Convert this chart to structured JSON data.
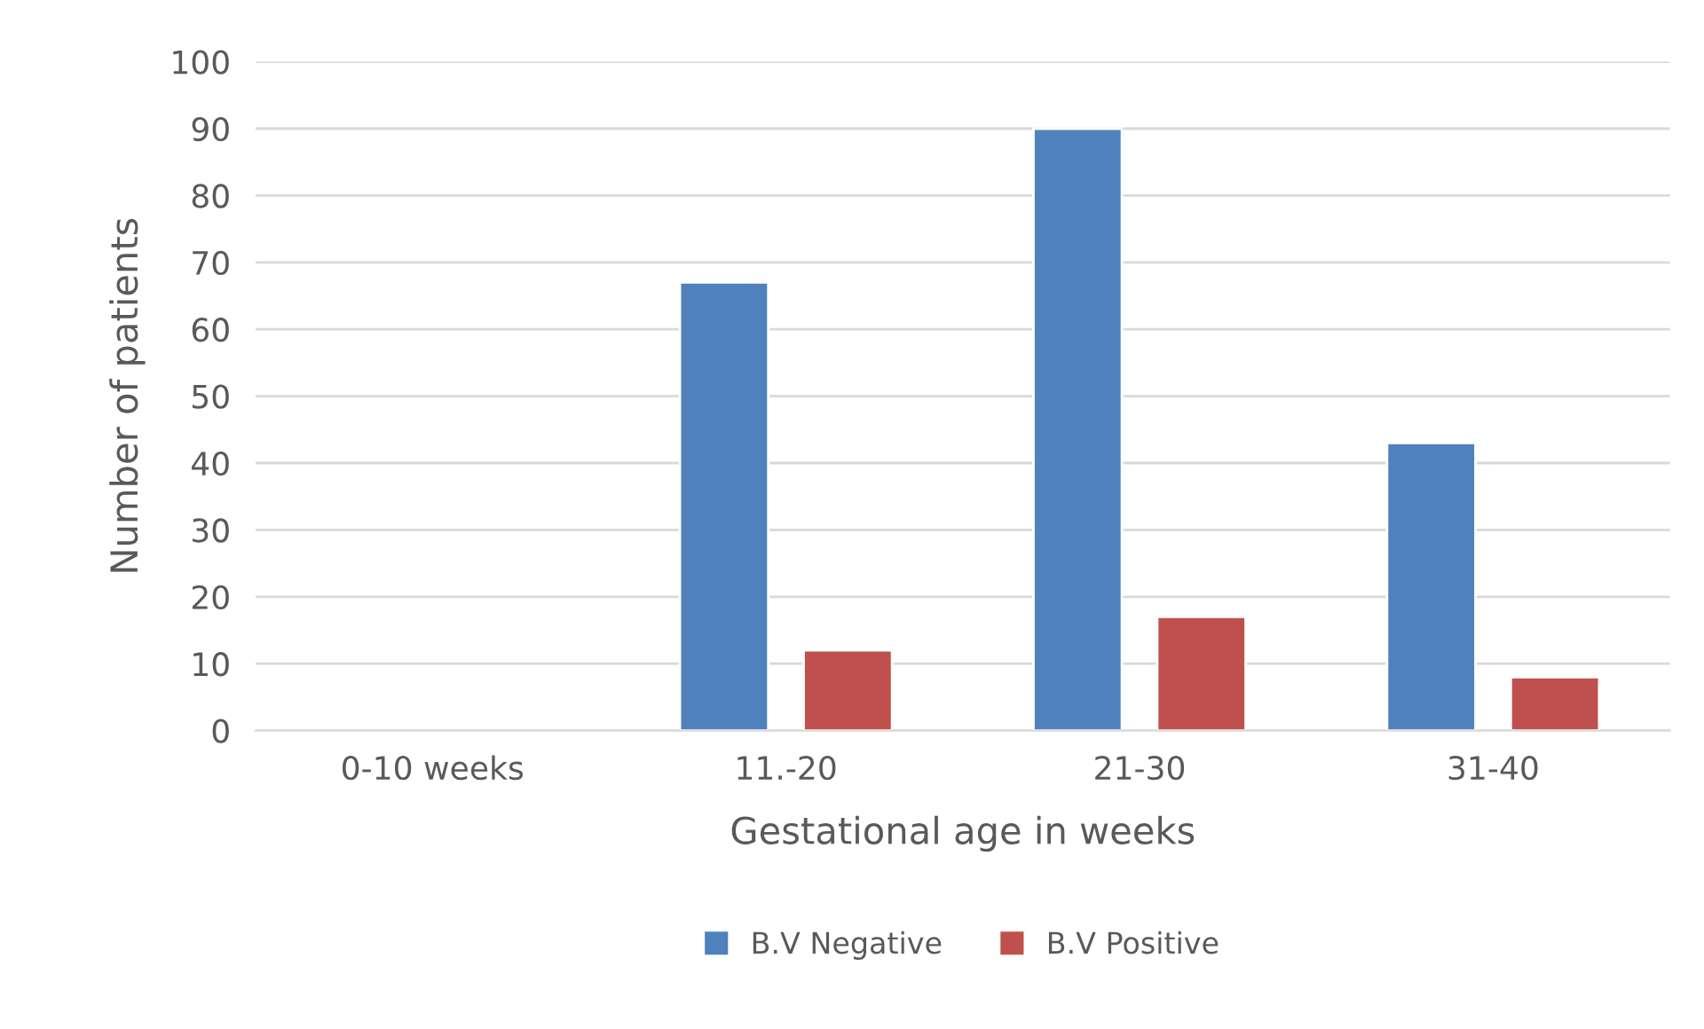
{
  "chart_data": {
    "type": "bar",
    "xlabel": "Gestational age in weeks",
    "ylabel": "Number of patients",
    "categories": [
      "0-10 weeks",
      "11.-20",
      "21-30",
      "31-40"
    ],
    "series": [
      {
        "name": "B.V Negative",
        "color": "#4f81bd",
        "values": [
          null,
          67,
          90,
          43
        ]
      },
      {
        "name": "B.V Positive",
        "color": "#c0504d",
        "values": [
          null,
          12,
          17,
          8
        ]
      }
    ],
    "ylim": [
      0,
      100
    ],
    "yticks": [
      0,
      10,
      20,
      30,
      40,
      50,
      60,
      70,
      80,
      90,
      100
    ],
    "grid": "y",
    "legend": "bottom"
  }
}
